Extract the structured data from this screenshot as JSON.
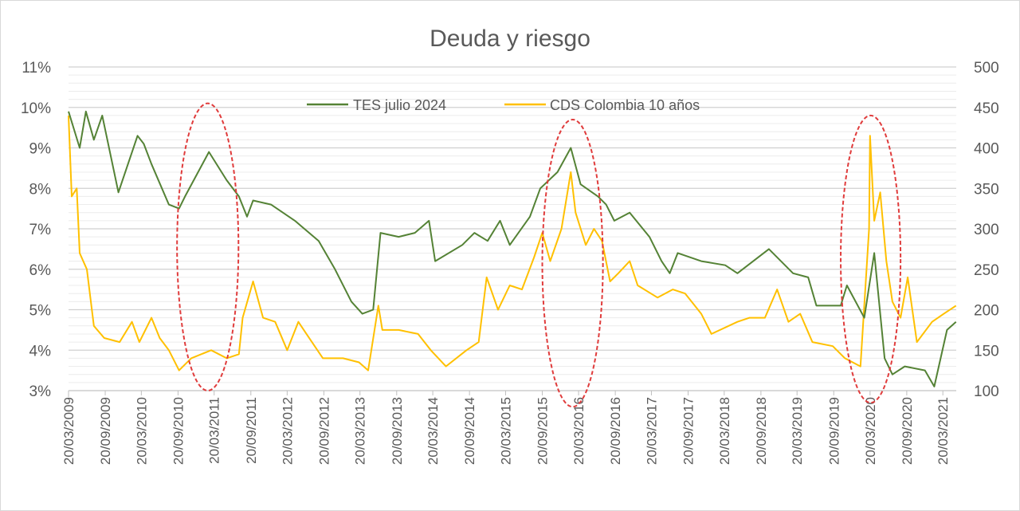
{
  "chart_data": {
    "type": "line",
    "title": "Deuda y riesgo",
    "xlabel": "",
    "ylabel": "",
    "y2label": "",
    "ylim": [
      0.03,
      0.11
    ],
    "y_ticks": [
      "3%",
      "4%",
      "5%",
      "6%",
      "7%",
      "8%",
      "9%",
      "10%",
      "11%"
    ],
    "y2lim": [
      100,
      500
    ],
    "y2_ticks": [
      "100",
      "150",
      "200",
      "250",
      "300",
      "350",
      "400",
      "450",
      "500"
    ],
    "x_ticks": [
      "20/03/2009",
      "20/09/2009",
      "20/03/2010",
      "20/09/2010",
      "20/03/2011",
      "20/09/2011",
      "20/03/2012",
      "20/09/2012",
      "20/03/2013",
      "20/09/2013",
      "20/03/2014",
      "20/09/2014",
      "20/03/2015",
      "20/09/2015",
      "20/03/2016",
      "20/09/2016",
      "20/03/2017",
      "20/09/2017",
      "20/03/2018",
      "20/09/2018",
      "20/03/2019",
      "20/09/2019",
      "20/03/2020",
      "20/09/2020",
      "20/03/2021"
    ],
    "grid": true,
    "legend_position": "top",
    "series": [
      {
        "name": "TES julio 2024",
        "axis": "left",
        "color": "#548235",
        "points": [
          [
            "2009-03-20",
            0.099
          ],
          [
            "2009-05-15",
            0.09
          ],
          [
            "2009-06-15",
            0.099
          ],
          [
            "2009-07-25",
            0.092
          ],
          [
            "2009-09-05",
            0.098
          ],
          [
            "2009-11-25",
            0.079
          ],
          [
            "2010-03-01",
            0.093
          ],
          [
            "2010-04-01",
            0.091
          ],
          [
            "2010-05-10",
            0.086
          ],
          [
            "2010-08-05",
            0.076
          ],
          [
            "2010-09-25",
            0.075
          ],
          [
            "2010-10-25",
            0.078
          ],
          [
            "2011-02-22",
            0.089
          ],
          [
            "2011-05-22",
            0.082
          ],
          [
            "2011-07-22",
            0.078
          ],
          [
            "2011-09-01",
            0.073
          ],
          [
            "2011-10-01",
            0.077
          ],
          [
            "2011-12-30",
            0.076
          ],
          [
            "2012-04-28",
            0.072
          ],
          [
            "2012-08-25",
            0.067
          ],
          [
            "2012-11-15",
            0.06
          ],
          [
            "2013-02-05",
            0.052
          ],
          [
            "2013-04-01",
            0.049
          ],
          [
            "2013-05-25",
            0.05
          ],
          [
            "2013-07-01",
            0.069
          ],
          [
            "2013-09-30",
            0.068
          ],
          [
            "2013-12-20",
            0.069
          ],
          [
            "2014-03-01",
            0.072
          ],
          [
            "2014-04-01",
            0.062
          ],
          [
            "2014-08-15",
            0.066
          ],
          [
            "2014-10-15",
            0.069
          ],
          [
            "2014-12-20",
            0.067
          ],
          [
            "2015-02-20",
            0.072
          ],
          [
            "2015-04-10",
            0.066
          ],
          [
            "2015-07-20",
            0.073
          ],
          [
            "2015-09-10",
            0.08
          ],
          [
            "2015-12-05",
            0.084
          ],
          [
            "2016-02-10",
            0.09
          ],
          [
            "2016-03-30",
            0.081
          ],
          [
            "2016-06-25",
            0.078
          ],
          [
            "2016-08-05",
            0.076
          ],
          [
            "2016-09-15",
            0.072
          ],
          [
            "2016-12-01",
            0.074
          ],
          [
            "2017-03-10",
            0.068
          ],
          [
            "2017-05-10",
            0.062
          ],
          [
            "2017-06-20",
            0.059
          ],
          [
            "2017-07-30",
            0.064
          ],
          [
            "2017-11-25",
            0.062
          ],
          [
            "2018-03-25",
            0.061
          ],
          [
            "2018-05-25",
            0.059
          ],
          [
            "2018-10-30",
            0.065
          ],
          [
            "2019-02-28",
            0.059
          ],
          [
            "2019-05-15",
            0.058
          ],
          [
            "2019-06-25",
            0.051
          ],
          [
            "2019-10-25",
            0.051
          ],
          [
            "2019-11-25",
            0.056
          ],
          [
            "2020-02-20",
            0.048
          ],
          [
            "2020-04-10",
            0.064
          ],
          [
            "2020-06-01",
            0.038
          ],
          [
            "2020-07-10",
            0.034
          ],
          [
            "2020-09-10",
            0.036
          ],
          [
            "2020-12-20",
            0.035
          ],
          [
            "2021-02-05",
            0.031
          ],
          [
            "2021-04-10",
            0.045
          ],
          [
            "2021-05-25",
            0.047
          ]
        ]
      },
      {
        "name": "CDS Colombia 10 años",
        "axis": "right",
        "color": "#FFC000",
        "points": [
          [
            "2009-03-20",
            440
          ],
          [
            "2009-04-05",
            340
          ],
          [
            "2009-04-30",
            350
          ],
          [
            "2009-05-15",
            270
          ],
          [
            "2009-06-20",
            250
          ],
          [
            "2009-07-25",
            180
          ],
          [
            "2009-09-15",
            165
          ],
          [
            "2009-12-01",
            160
          ],
          [
            "2010-02-01",
            185
          ],
          [
            "2010-03-10",
            160
          ],
          [
            "2010-05-10",
            190
          ],
          [
            "2010-06-20",
            165
          ],
          [
            "2010-08-05",
            150
          ],
          [
            "2010-09-25",
            125
          ],
          [
            "2010-11-25",
            140
          ],
          [
            "2011-03-05",
            150
          ],
          [
            "2011-05-22",
            140
          ],
          [
            "2011-07-22",
            145
          ],
          [
            "2011-08-10",
            190
          ],
          [
            "2011-10-01",
            235
          ],
          [
            "2011-11-20",
            190
          ],
          [
            "2012-01-20",
            185
          ],
          [
            "2012-03-20",
            150
          ],
          [
            "2012-05-15",
            185
          ],
          [
            "2012-06-25",
            170
          ],
          [
            "2012-09-15",
            140
          ],
          [
            "2012-12-25",
            140
          ],
          [
            "2013-03-15",
            135
          ],
          [
            "2013-04-30",
            125
          ],
          [
            "2013-06-20",
            205
          ],
          [
            "2013-07-10",
            175
          ],
          [
            "2013-09-30",
            175
          ],
          [
            "2014-01-05",
            170
          ],
          [
            "2014-03-10",
            150
          ],
          [
            "2014-05-25",
            130
          ],
          [
            "2014-09-05",
            150
          ],
          [
            "2014-11-05",
            160
          ],
          [
            "2014-12-15",
            240
          ],
          [
            "2015-02-10",
            200
          ],
          [
            "2015-04-10",
            230
          ],
          [
            "2015-06-10",
            225
          ],
          [
            "2015-08-10",
            265
          ],
          [
            "2015-09-20",
            295
          ],
          [
            "2015-10-30",
            260
          ],
          [
            "2015-12-25",
            300
          ],
          [
            "2016-02-10",
            370
          ],
          [
            "2016-03-05",
            320
          ],
          [
            "2016-04-25",
            280
          ],
          [
            "2016-06-05",
            300
          ],
          [
            "2016-07-15",
            285
          ],
          [
            "2016-08-25",
            235
          ],
          [
            "2016-10-05",
            245
          ],
          [
            "2016-12-01",
            260
          ],
          [
            "2017-01-10",
            230
          ],
          [
            "2017-04-20",
            215
          ],
          [
            "2017-07-05",
            225
          ],
          [
            "2017-09-05",
            220
          ],
          [
            "2017-11-25",
            195
          ],
          [
            "2018-01-15",
            170
          ],
          [
            "2018-05-25",
            185
          ],
          [
            "2018-07-25",
            190
          ],
          [
            "2018-10-10",
            190
          ],
          [
            "2018-12-10",
            225
          ],
          [
            "2019-02-05",
            185
          ],
          [
            "2019-04-05",
            195
          ],
          [
            "2019-06-05",
            160
          ],
          [
            "2019-09-15",
            155
          ],
          [
            "2019-11-15",
            140
          ],
          [
            "2020-02-01",
            130
          ],
          [
            "2020-03-15",
            300
          ],
          [
            "2020-03-20",
            415
          ],
          [
            "2020-04-10",
            310
          ],
          [
            "2020-05-10",
            345
          ],
          [
            "2020-06-10",
            260
          ],
          [
            "2020-07-10",
            210
          ],
          [
            "2020-08-20",
            190
          ],
          [
            "2020-09-25",
            240
          ],
          [
            "2020-11-10",
            160
          ],
          [
            "2021-01-25",
            185
          ],
          [
            "2021-03-25",
            195
          ],
          [
            "2021-05-25",
            205
          ]
        ]
      }
    ],
    "annotations": [
      {
        "type": "dashed-ellipse",
        "color": "#E03C3C",
        "x_range": [
          "2010-09-15",
          "2011-07-20"
        ],
        "y_range": [
          0.03,
          0.101
        ]
      },
      {
        "type": "dashed-ellipse",
        "color": "#E03C3C",
        "x_range": [
          "2015-09-20",
          "2016-07-20"
        ],
        "y_range": [
          0.026,
          0.097
        ]
      },
      {
        "type": "dashed-ellipse",
        "color": "#E03C3C",
        "x_range": [
          "2019-10-25",
          "2020-08-20"
        ],
        "y_range": [
          0.027,
          0.098
        ]
      }
    ]
  }
}
